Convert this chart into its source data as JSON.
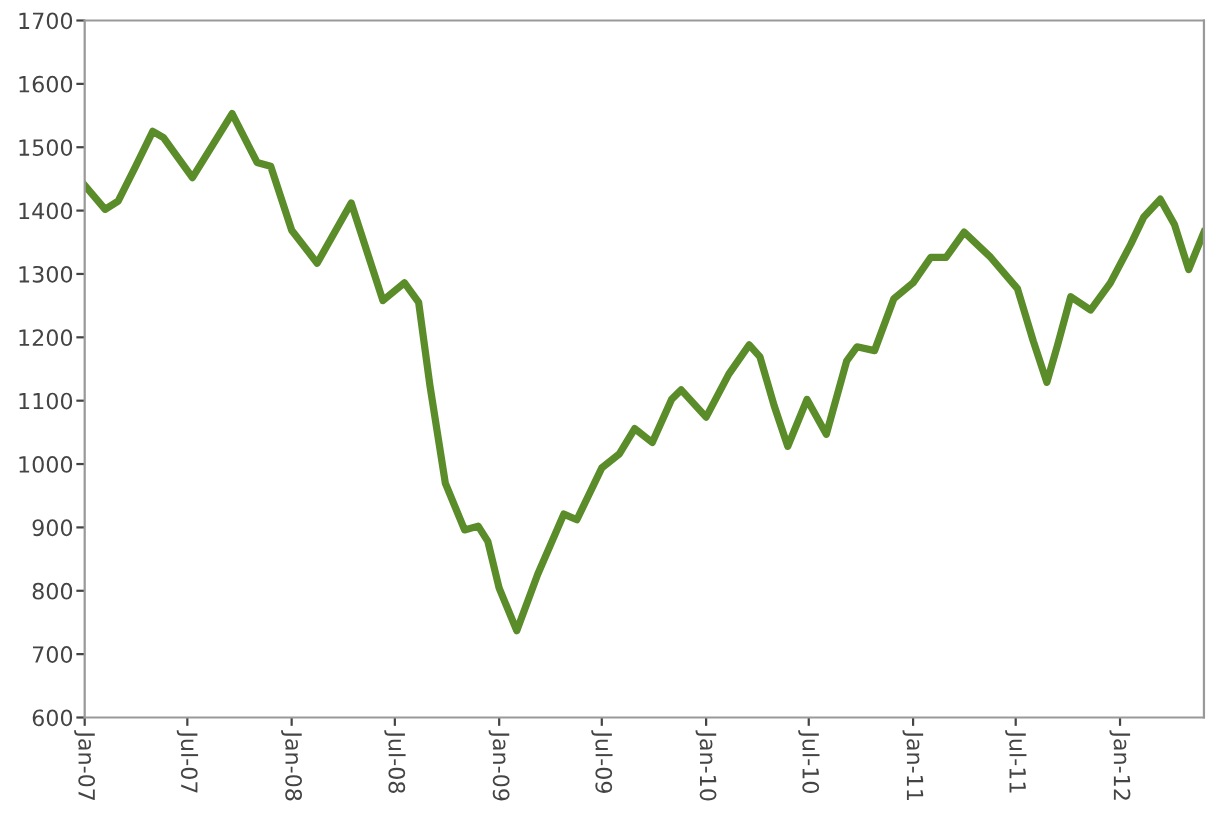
{
  "chart_data": {
    "type": "line",
    "x": [
      "2007-01-01",
      "2007-02-06",
      "2007-03-01",
      "2007-04-01",
      "2007-05-01",
      "2007-05-20",
      "2007-07-10",
      "2007-09-18",
      "2007-11-01",
      "2007-11-25",
      "2008-01-01",
      "2008-02-15",
      "2008-04-15",
      "2008-06-10",
      "2008-07-18",
      "2008-08-12",
      "2008-09-01",
      "2008-09-28",
      "2008-11-01",
      "2008-11-25",
      "2008-12-12",
      "2009-01-01",
      "2009-02-01",
      "2009-03-10",
      "2009-04-25",
      "2009-05-18",
      "2009-07-01",
      "2009-08-01",
      "2009-08-28",
      "2009-09-28",
      "2009-11-01",
      "2009-11-18",
      "2010-01-01",
      "2010-02-10",
      "2010-03-18",
      "2010-04-06",
      "2010-05-01",
      "2010-05-25",
      "2010-06-28",
      "2010-08-01",
      "2010-09-06",
      "2010-09-24",
      "2010-10-25",
      "2010-11-28",
      "2011-01-01",
      "2011-02-01",
      "2011-02-28",
      "2011-04-01",
      "2011-05-18",
      "2011-07-04",
      "2011-08-01",
      "2011-08-25",
      "2011-09-12",
      "2011-10-06",
      "2011-11-10",
      "2011-12-15",
      "2012-01-20",
      "2012-02-12",
      "2012-03-12",
      "2012-04-06",
      "2012-05-01",
      "2012-05-28"
    ],
    "series": [
      {
        "color": "#5b8c2a",
        "values": [
          1440,
          1402,
          1415,
          1470,
          1525,
          1515,
          1452,
          1553,
          1476,
          1470,
          1369,
          1317,
          1412,
          1258,
          1286,
          1255,
          1123,
          970,
          896,
          902,
          878,
          804,
          737,
          826,
          921,
          912,
          994,
          1016,
          1056,
          1034,
          1102,
          1117,
          1074,
          1142,
          1188,
          1169,
          1092,
          1028,
          1102,
          1047,
          1163,
          1185,
          1179,
          1261,
          1286,
          1326,
          1326,
          1366,
          1326,
          1277,
          1194,
          1129,
          1185,
          1264,
          1243,
          1286,
          1347,
          1390,
          1418,
          1378,
          1307,
          1366
        ]
      }
    ],
    "xlim": [
      "2007-01-01",
      "2012-05-28"
    ],
    "xticks": [
      {
        "value": "2007-01-01",
        "label": "Jan-07"
      },
      {
        "value": "2007-07-01",
        "label": "Jul-07"
      },
      {
        "value": "2008-01-01",
        "label": "Jan-08"
      },
      {
        "value": "2008-07-01",
        "label": "Jul-08"
      },
      {
        "value": "2009-01-01",
        "label": "Jan-09"
      },
      {
        "value": "2009-07-01",
        "label": "Jul-09"
      },
      {
        "value": "2010-01-01",
        "label": "Jan-10"
      },
      {
        "value": "2010-07-01",
        "label": "Jul-10"
      },
      {
        "value": "2011-01-01",
        "label": "Jan-11"
      },
      {
        "value": "2011-07-01",
        "label": "Jul-11"
      },
      {
        "value": "2012-01-01",
        "label": "Jan-12"
      }
    ],
    "ylim": [
      600,
      1700
    ],
    "yticks": [
      600,
      700,
      800,
      900,
      1000,
      1100,
      1200,
      1300,
      1400,
      1500,
      1600,
      1700
    ],
    "grid": false,
    "marker": "none",
    "line_style": "solid"
  }
}
